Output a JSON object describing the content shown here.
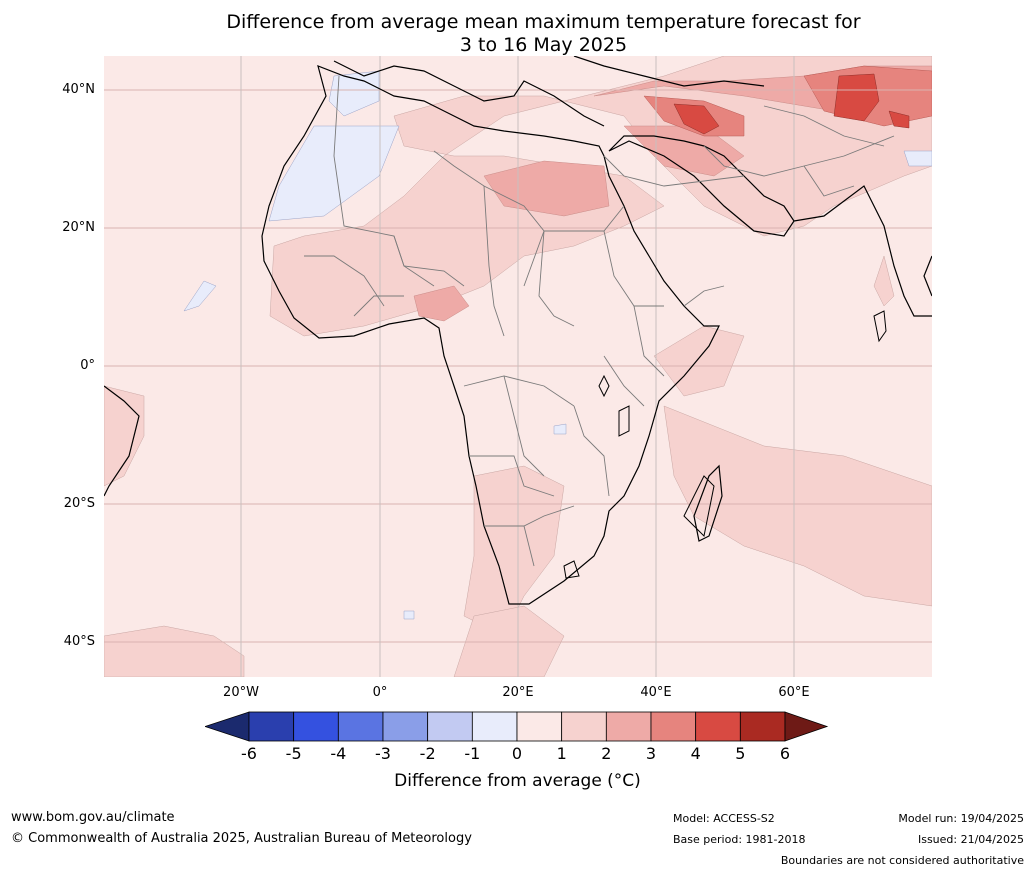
{
  "title_line1": "Difference from average mean maximum temperature forecast for",
  "title_line2": "3 to 16 May 2025",
  "lat_labels": [
    "40°N",
    "20°N",
    "0°",
    "20°S",
    "40°S"
  ],
  "lon_labels": [
    "20°W",
    "0°",
    "20°E",
    "40°E",
    "60°E"
  ],
  "colorbar": {
    "ticks": [
      "-6",
      "-5",
      "-4",
      "-3",
      "-2",
      "-1",
      "0",
      "1",
      "2",
      "3",
      "4",
      "5",
      "6"
    ],
    "colors": [
      "#1b2a6e",
      "#2a3fae",
      "#3451e0",
      "#5a74e2",
      "#8a9ee8",
      "#c2caf2",
      "#e8ecfb",
      "#fbe9e7",
      "#f6d2cf",
      "#eeaaa7",
      "#e6847e",
      "#d84a42",
      "#aa2a22",
      "#6e1a16"
    ],
    "label": "Difference from average (°C)"
  },
  "footer": {
    "url": "www.bom.gov.au/climate",
    "copyright": "© Commonwealth of Australia 2025, Australian Bureau of Meteorology",
    "model": "Model: ACCESS-S2",
    "base_period": "Base period: 1981-2018",
    "model_run": "Model run: 19/04/2025",
    "issued": "Issued: 21/04/2025",
    "disclaimer": "Boundaries are not considered authoritative"
  },
  "colors": {
    "ocean_base": "#fbe9e7",
    "border": "#777777",
    "coast": "#000000",
    "gridline": "#d9b3b0"
  }
}
